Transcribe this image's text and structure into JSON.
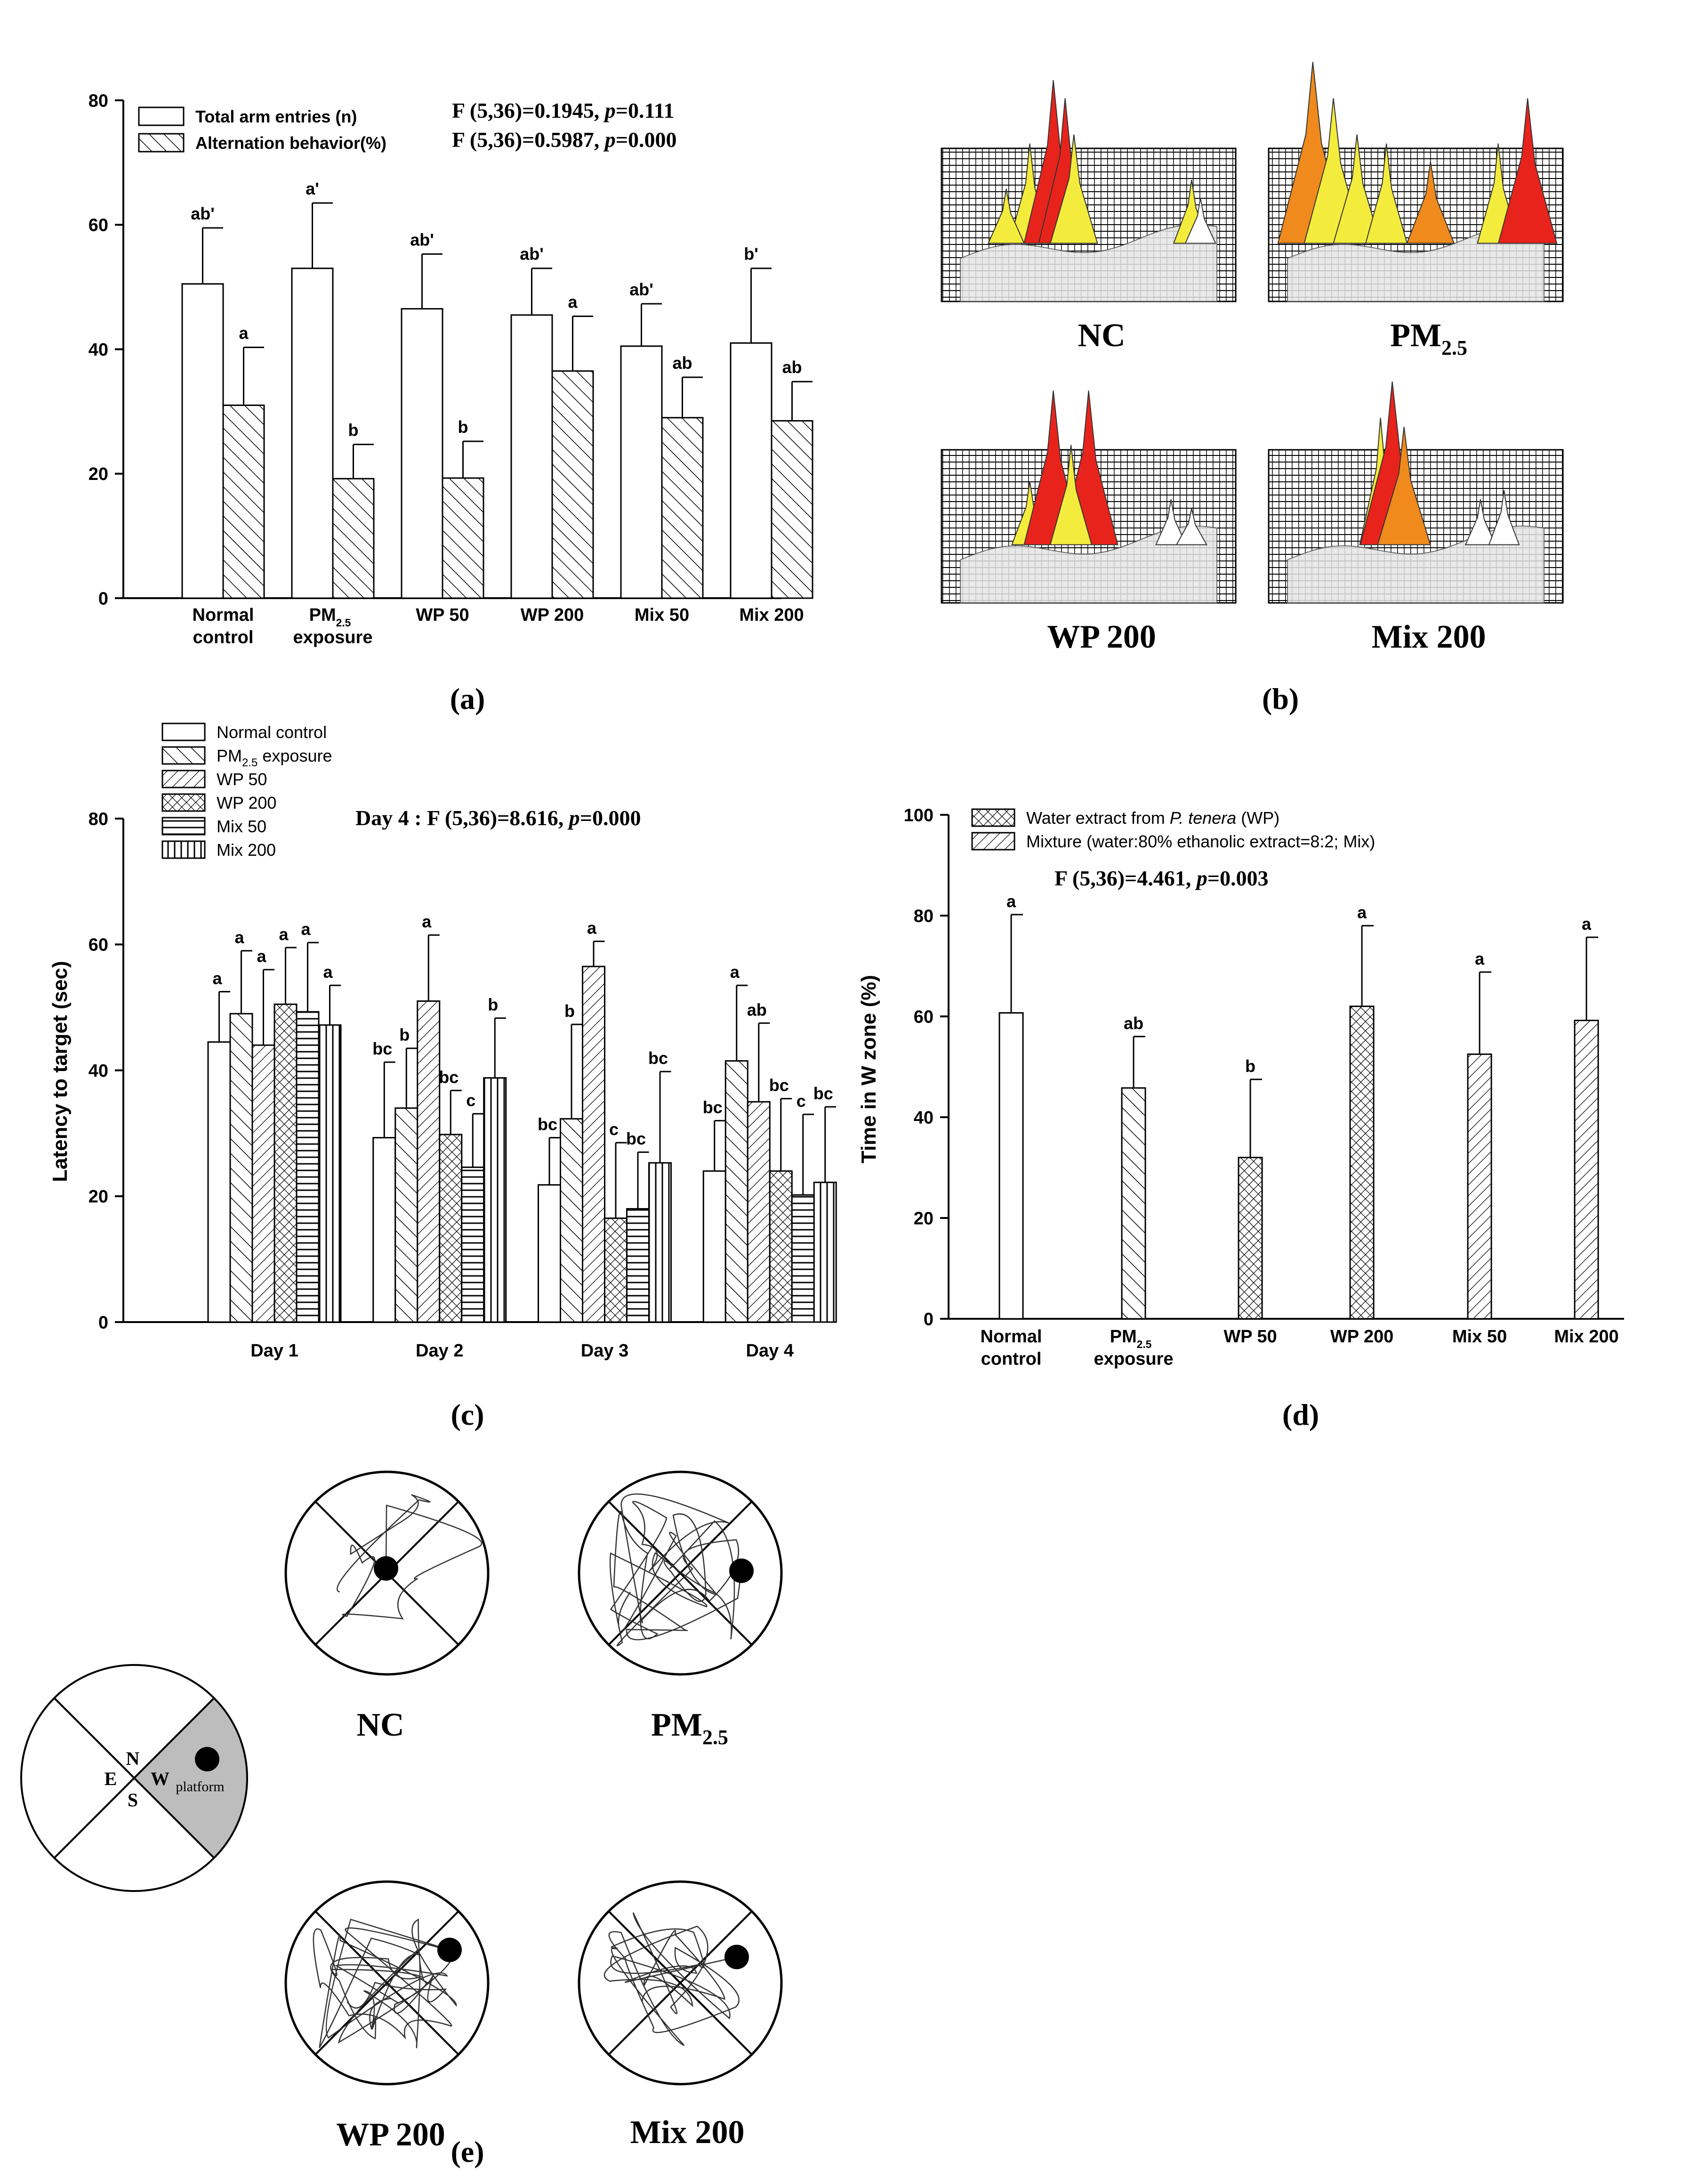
{
  "panel_labels": [
    "(a)",
    "(b)",
    "(c)",
    "(d)",
    "(e)"
  ],
  "colors": {
    "axis": "#000000",
    "bar_fill": "#ffffff",
    "peak_red": "#e8231c",
    "peak_orange": "#f08a1c",
    "peak_yellow": "#f4ec3c",
    "quadrant_gray": "#bdbdbd"
  },
  "chart_data": [
    {
      "id": "a",
      "type": "bar",
      "categories": [
        "Normal control",
        "PM2.5 exposure",
        "WP 50",
        "WP 200",
        "Mix 50",
        "Mix 200"
      ],
      "category_lines": [
        [
          "Normal",
          "control"
        ],
        [
          "PM",
          "2.5",
          "exposure"
        ],
        [
          "WP 50"
        ],
        [
          "WP 200"
        ],
        [
          "Mix 50"
        ],
        [
          "Mix 200"
        ]
      ],
      "ylim": [
        0,
        80
      ],
      "yticks": [
        "0",
        "20",
        "40",
        "60",
        "80"
      ],
      "legend": [
        "Total arm entries (n)",
        "Alternation behavior(%)"
      ],
      "stats": [
        "F (5,36)=0.1945, p=0.111",
        "F (5,36)=0.5987, p=0.000"
      ],
      "series": [
        {
          "name": "Total arm entries (n)",
          "pattern": "none",
          "values": [
            50.5,
            53,
            46.5,
            45.5,
            40.5,
            41
          ],
          "errors": [
            9,
            10.5,
            8.8,
            7.5,
            6.8,
            12
          ],
          "labels": [
            "ab'",
            "a'",
            "ab'",
            "ab'",
            "ab'",
            "b'"
          ]
        },
        {
          "name": "Alternation behavior(%)",
          "pattern": "diag",
          "values": [
            31,
            19.2,
            19.3,
            36.5,
            29,
            28.5
          ],
          "errors": [
            9.3,
            5.5,
            5.9,
            8.8,
            6.5,
            6.3
          ],
          "labels": [
            "a",
            "b",
            "b",
            "a",
            "ab",
            "ab"
          ]
        }
      ]
    },
    {
      "id": "c",
      "type": "bar",
      "categories": [
        "Day 1",
        "Day 2",
        "Day 3",
        "Day 4"
      ],
      "ylim": [
        0,
        80
      ],
      "yticks": [
        "0",
        "20",
        "40",
        "60",
        "80"
      ],
      "ylabel": "Latency to target (sec)",
      "stats": [
        "Day 4 : F (5,36)=8.616, p=0.000"
      ],
      "series": [
        {
          "name": "Normal control",
          "pattern": "none",
          "values": [
            44.5,
            29.3,
            21.8,
            24
          ],
          "errors": [
            8,
            12,
            7.5,
            8
          ],
          "labels": [
            "a",
            "bc",
            "bc",
            "bc"
          ]
        },
        {
          "name": "PM2.5 exposure",
          "pattern": "diag",
          "values": [
            49,
            34,
            32.3,
            41.5
          ],
          "errors": [
            10,
            9.5,
            15,
            12
          ],
          "labels": [
            "a",
            "b",
            "b",
            "a"
          ]
        },
        {
          "name": "WP 50",
          "pattern": "diag2",
          "values": [
            44,
            51,
            56.5,
            35
          ],
          "errors": [
            12,
            10.5,
            4,
            12.5
          ],
          "labels": [
            "a",
            "a",
            "a",
            "ab"
          ]
        },
        {
          "name": "WP 200",
          "pattern": "cross",
          "values": [
            50.5,
            29.8,
            16.5,
            24
          ],
          "errors": [
            9,
            7,
            12,
            11.5
          ],
          "labels": [
            "a",
            "bc",
            "c",
            "bc"
          ]
        },
        {
          "name": "Mix 50",
          "pattern": "hlines",
          "values": [
            49.3,
            24.6,
            18,
            20.2
          ],
          "errors": [
            11,
            8.5,
            9,
            12.8
          ],
          "labels": [
            "a",
            "c",
            "bc",
            "c"
          ]
        },
        {
          "name": "Mix 200",
          "pattern": "vlines",
          "values": [
            47.2,
            38.8,
            25.3,
            22.2
          ],
          "errors": [
            6.3,
            9.5,
            14.5,
            12
          ],
          "labels": [
            "a",
            "b",
            "bc",
            "bc"
          ]
        }
      ]
    },
    {
      "id": "d",
      "type": "bar",
      "categories": [
        "Normal control",
        "PM2.5 exposure",
        "WP 50",
        "WP 200",
        "Mix 50",
        "Mix 200"
      ],
      "category_lines": [
        [
          "Normal",
          "control"
        ],
        [
          "PM",
          "2.5",
          "exposure"
        ],
        [
          "WP 50"
        ],
        [
          "WP 200"
        ],
        [
          "Mix 50"
        ],
        [
          "Mix 200"
        ]
      ],
      "ylim": [
        0,
        100
      ],
      "yticks": [
        "0",
        "20",
        "40",
        "60",
        "80",
        "100"
      ],
      "ylabel": "Time in W zone (%)",
      "legend": [
        "Water extract from P. tenera (WP)",
        "Mixture (water:80% ethanolic extract=8:2; Mix)"
      ],
      "stats": [
        "F (5,36)=4.461, p=0.003"
      ],
      "values": [
        60.7,
        45.8,
        32,
        62,
        52.5,
        59.2
      ],
      "errors": [
        19.5,
        10.2,
        15.5,
        16,
        16.3,
        16.5
      ],
      "labels": [
        "a",
        "ab",
        "b",
        "a",
        "a",
        "a"
      ],
      "patterns": [
        "none",
        "diag",
        "cross",
        "cross",
        "diag2",
        "diag2"
      ]
    }
  ],
  "panel_b": {
    "labels": [
      "NC",
      "PM2.5",
      "WP 200",
      "Mix 200"
    ]
  },
  "panel_e": {
    "legend_letters": [
      "N",
      "E",
      "W",
      "S"
    ],
    "platform_label": "platform",
    "labels": [
      "NC",
      "PM2.5",
      "WP 200",
      "Mix 200"
    ]
  }
}
